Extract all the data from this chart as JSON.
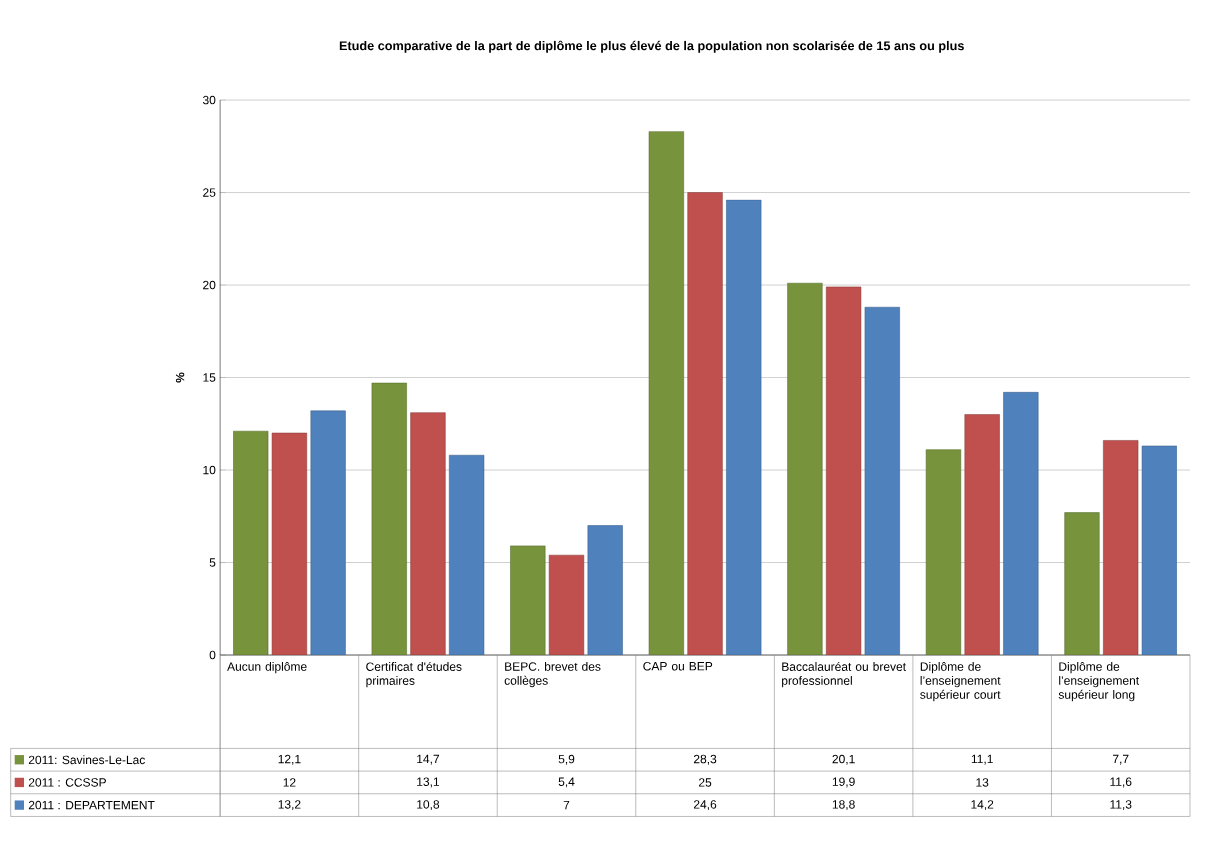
{
  "chart_data": {
    "type": "bar",
    "title": "Etude comparative de la part de diplôme le plus élevé de la population non scolarisée de 15 ans ou plus",
    "ylabel": "%",
    "categories": [
      "Aucun diplôme",
      "Certificat d'études primaires",
      "BEPC. brevet des collèges",
      "CAP ou BEP",
      "Baccalauréat ou brevet professionnel",
      "Diplôme de l’enseignement supérieur court",
      "Diplôme de l’enseignement supérieur long"
    ],
    "series": [
      {
        "name": "2011: Savines-Le-Lac",
        "color": "#77933c",
        "values": [
          12.1,
          14.7,
          5.9,
          28.3,
          20.1,
          11.1,
          7.7
        ],
        "value_labels": [
          "12,1",
          "14,7",
          "5,9",
          "28,3",
          "20,1",
          "11,1",
          "7,7"
        ]
      },
      {
        "name": "2011 : CCSSP",
        "color": "#c0504d",
        "values": [
          12,
          13.1,
          5.4,
          25,
          19.9,
          13,
          11.6
        ],
        "value_labels": [
          "12",
          "13,1",
          "5,4",
          "25",
          "19,9",
          "13",
          "11,6"
        ]
      },
      {
        "name": "2011 : DEPARTEMENT",
        "color": "#4f81bd",
        "values": [
          13.2,
          10.8,
          7,
          24.6,
          18.8,
          14.2,
          11.3
        ],
        "value_labels": [
          "13,2",
          "10,8",
          "7",
          "24,6",
          "18,8",
          "14,2",
          "11,3"
        ]
      }
    ],
    "ylim": [
      0,
      30
    ],
    "yticks": [
      0,
      5,
      10,
      15,
      20,
      25,
      30
    ],
    "grid": "y",
    "legend": "bottom"
  }
}
